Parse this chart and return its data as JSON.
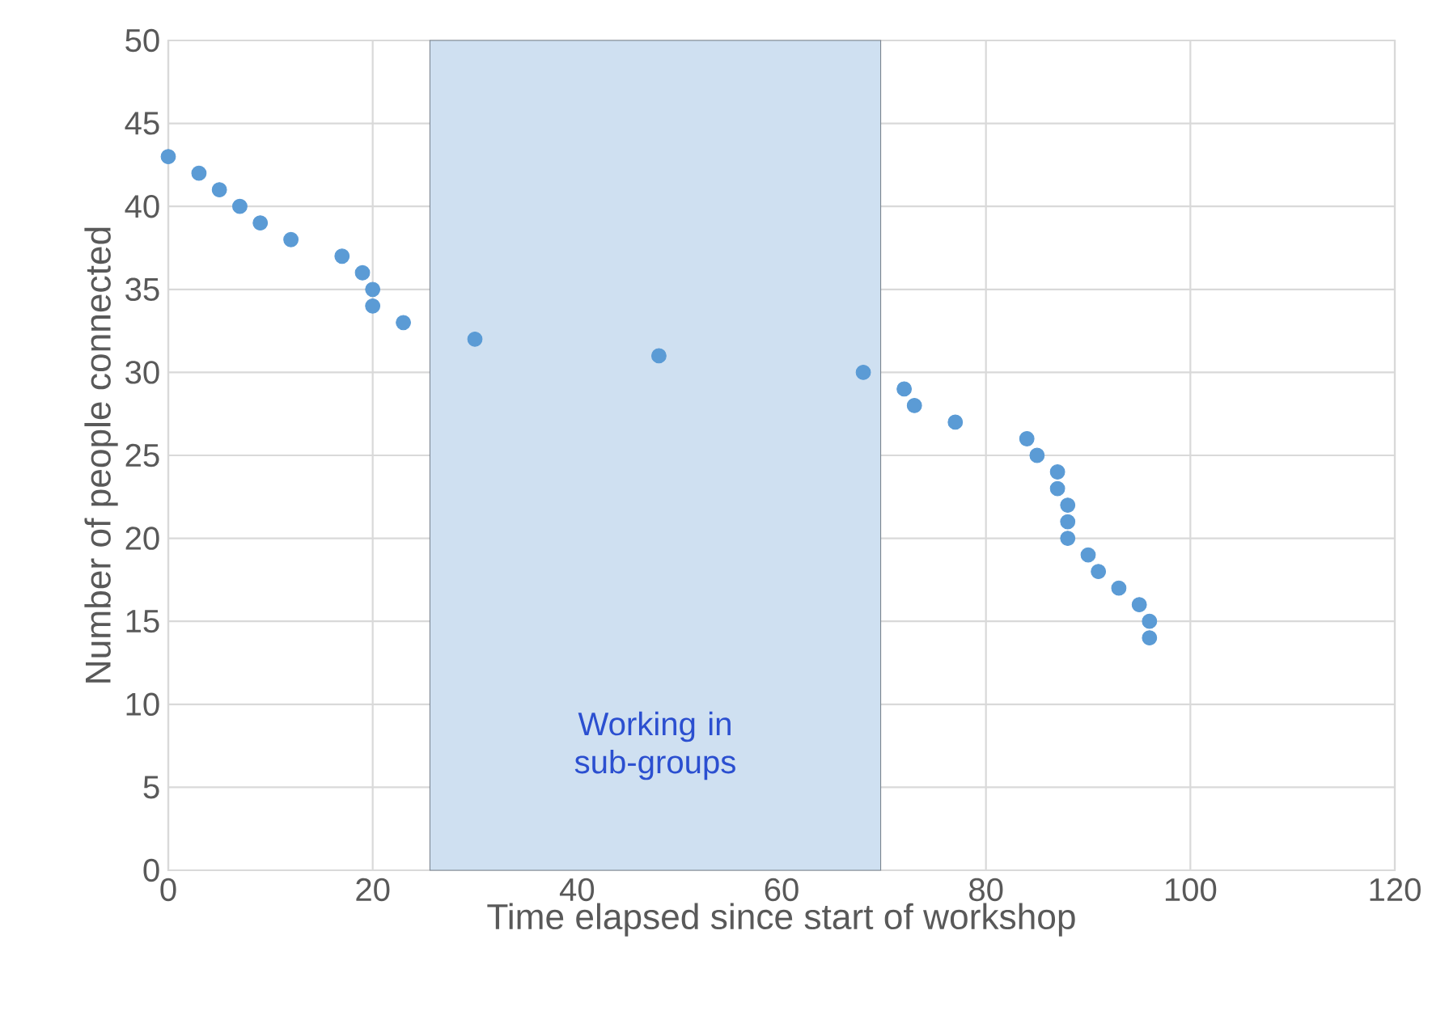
{
  "chart_data": {
    "type": "scatter",
    "xlabel": "Time elapsed since start of workshop",
    "ylabel": "Number of people connected",
    "x": [
      0,
      3,
      5,
      7,
      9,
      12,
      17,
      19,
      20,
      20,
      23,
      30,
      48,
      68,
      72,
      73,
      77,
      84,
      85,
      87,
      87,
      88,
      88,
      88,
      90,
      91,
      93,
      95,
      96,
      96
    ],
    "series": [
      {
        "color": "#5b9bd5",
        "values": [
          43,
          42,
          41,
          40,
          39,
          38,
          37,
          36,
          35,
          34,
          33,
          32,
          31,
          30,
          29,
          28,
          27,
          26,
          25,
          24,
          23,
          22,
          21,
          20,
          19,
          18,
          17,
          16,
          15,
          14
        ]
      }
    ],
    "xlim": [
      0,
      120
    ],
    "xticks": [
      0,
      20,
      40,
      60,
      80,
      100,
      120
    ],
    "ylim": [
      0,
      50
    ],
    "yticks": [
      0,
      5,
      10,
      15,
      20,
      25,
      30,
      35,
      40,
      45,
      50
    ],
    "bands": [
      {
        "axis": "x",
        "from": 25.6,
        "to": 69.7,
        "label": "Working in sub-groups",
        "color": "#cfe0f1"
      }
    ],
    "grid": true,
    "marker": "circle"
  }
}
